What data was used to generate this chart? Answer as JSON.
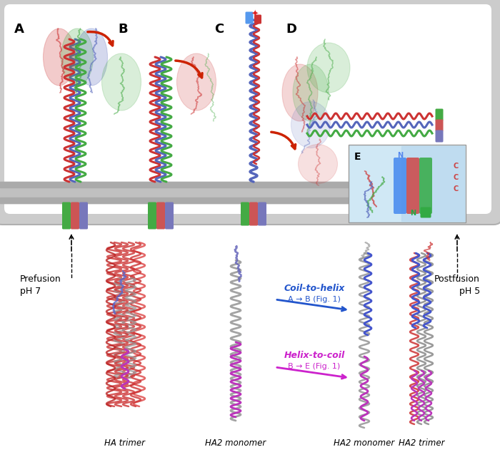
{
  "figure_width": 7.0,
  "figure_height": 6.41,
  "bg_color": "#ffffff",
  "panel_labels": [
    "A",
    "B",
    "C",
    "D"
  ],
  "panel_label_E": "E",
  "label_fontsize": 13,
  "tube_outer_color": "#cccccc",
  "tube_inner_color": "#ffffff",
  "membrane_color": "#c0c0c0",
  "membrane_dark_color": "#aaaaaa",
  "tm_colors": [
    "#44aa44",
    "#cc5555",
    "#7777bb"
  ],
  "red_arrow_color": "#cc2200",
  "prefusion_text": "Prefusion\npH 7",
  "postfusion_text": "Postfusion\npH 5",
  "coil_to_helix_text": "Coil-to-helix",
  "coil_to_helix_sub": "A → B (Fig. 1)",
  "coil_to_helix_color": "#2255cc",
  "helix_to_coil_text": "Helix-to-coil",
  "helix_to_coil_sub": "B → E (Fig. 1)",
  "helix_to_coil_color": "#cc22cc",
  "ha_trimer_label": "HA trimer",
  "ha2_monomer1_label": "HA2 monomer",
  "ha2_monomer2_label": "HA2 monomer",
  "ha2_trimer_label": "HA2 trimer",
  "inset_bg": "#d0e8f5",
  "inset_border": "#999999",
  "N_color_top": "#5588ee",
  "N_color_bottom": "#22aa44",
  "C_color": "#cc4444",
  "inset_helix_blue": "#4488ee",
  "inset_helix_red": "#cc4444",
  "inset_helix_green": "#33aa44",
  "label_gray": "#888888",
  "label_dark": "#222222",
  "red_color": "#cc3333",
  "green_color": "#44aa44",
  "blue_color": "#5566bb",
  "gray_color": "#888888",
  "purple_color": "#9944aa",
  "magenta_color": "#bb33bb"
}
